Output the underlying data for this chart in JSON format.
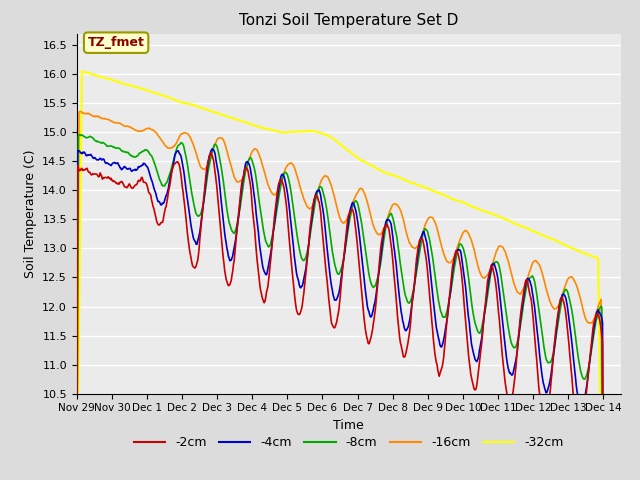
{
  "title": "Tonzi Soil Temperature Set D",
  "xlabel": "Time",
  "ylabel": "Soil Temperature (C)",
  "ylim": [
    10.5,
    16.7
  ],
  "xlim_start": 0,
  "xlim_end": 15.5,
  "annotation_label": "TZ_fmet",
  "annotation_color": "#8B0000",
  "annotation_bg": "#FFFFCC",
  "annotation_border": "#999900",
  "series_colors": {
    "-2cm": "#CC0000",
    "-4cm": "#0000CC",
    "-8cm": "#00AA00",
    "-16cm": "#FF8800",
    "-32cm": "#FFFF00"
  },
  "bg_color": "#DCDCDC",
  "plot_bg": "#EBEBEB",
  "grid_color": "#FFFFFF",
  "tick_labels": [
    "Nov 29",
    "Nov 30",
    "Dec 1",
    "Dec 2",
    "Dec 3",
    "Dec 4",
    "Dec 5",
    "Dec 6",
    "Dec 7",
    "Dec 8",
    "Dec 9",
    "Dec 10",
    "Dec 11",
    "Dec 12",
    "Dec 13",
    "Dec 14"
  ],
  "tick_positions": [
    0,
    1,
    2,
    3,
    4,
    5,
    6,
    7,
    8,
    9,
    10,
    11,
    12,
    13,
    14,
    15
  ],
  "yticks": [
    10.5,
    11.0,
    11.5,
    12.0,
    12.5,
    13.0,
    13.5,
    14.0,
    14.5,
    15.0,
    15.5,
    16.0,
    16.5
  ]
}
